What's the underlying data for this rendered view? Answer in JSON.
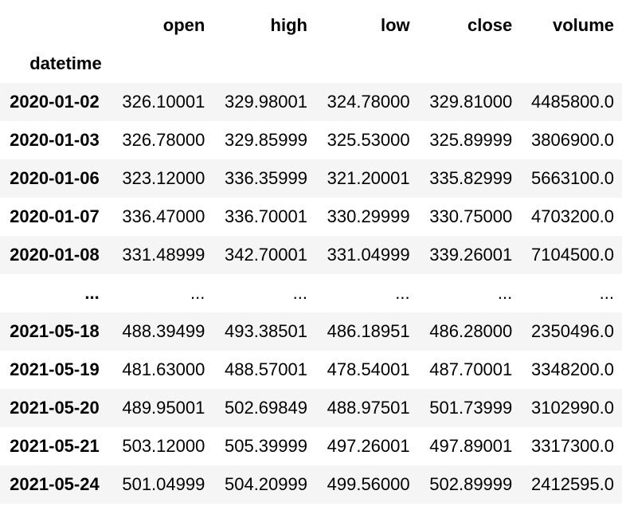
{
  "table": {
    "columns": [
      "open",
      "high",
      "low",
      "close",
      "volume"
    ],
    "index_name": "datetime",
    "rows": [
      {
        "index": "2020-01-02",
        "values": [
          "326.10001",
          "329.98001",
          "324.78000",
          "329.81000",
          "4485800.0"
        ]
      },
      {
        "index": "2020-01-03",
        "values": [
          "326.78000",
          "329.85999",
          "325.53000",
          "325.89999",
          "3806900.0"
        ]
      },
      {
        "index": "2020-01-06",
        "values": [
          "323.12000",
          "336.35999",
          "321.20001",
          "335.82999",
          "5663100.0"
        ]
      },
      {
        "index": "2020-01-07",
        "values": [
          "336.47000",
          "336.70001",
          "330.29999",
          "330.75000",
          "4703200.0"
        ]
      },
      {
        "index": "2020-01-08",
        "values": [
          "331.48999",
          "342.70001",
          "331.04999",
          "339.26001",
          "7104500.0"
        ]
      },
      {
        "index": "...",
        "values": [
          "...",
          "...",
          "...",
          "...",
          "..."
        ]
      },
      {
        "index": "2021-05-18",
        "values": [
          "488.39499",
          "493.38501",
          "486.18951",
          "486.28000",
          "2350496.0"
        ]
      },
      {
        "index": "2021-05-19",
        "values": [
          "481.63000",
          "488.57001",
          "478.54001",
          "487.70001",
          "3348200.0"
        ]
      },
      {
        "index": "2021-05-20",
        "values": [
          "489.95001",
          "502.69849",
          "488.97501",
          "501.73999",
          "3102990.0"
        ]
      },
      {
        "index": "2021-05-21",
        "values": [
          "503.12000",
          "505.39999",
          "497.26001",
          "497.89001",
          "3317300.0"
        ]
      },
      {
        "index": "2021-05-24",
        "values": [
          "501.04999",
          "504.20999",
          "499.56000",
          "502.89999",
          "2412595.0"
        ]
      }
    ]
  }
}
